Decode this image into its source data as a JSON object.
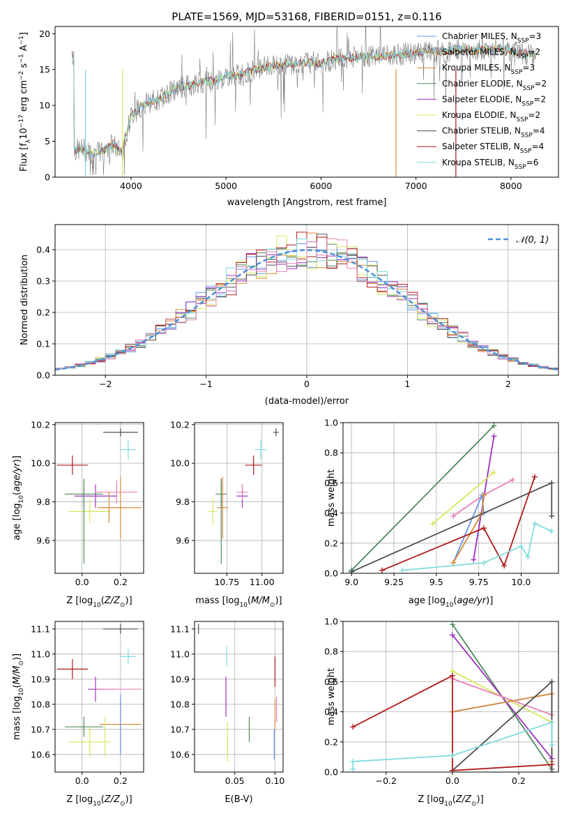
{
  "title": "PLATE=1569, MJD=53168, FIBERID=0151, z=0.116",
  "colors": {
    "chabrier_miles": "#6495ed",
    "salpeter_miles": "#9b9b9b",
    "kroupa_miles": "#d98b3a",
    "chabrier_elodie": "#4f8a5b",
    "salpeter_elodie": "#9b30c0",
    "kroupa_elodie": "#d4e85a",
    "chabrier_stelib": "#505050",
    "salpeter_stelib": "#b01818",
    "kroupa_stelib": "#7fdbe0",
    "pink": "#e880b8",
    "normal": "#4a90d9"
  },
  "chart_data": [
    {
      "id": "spectrum",
      "type": "line",
      "xlabel": "wavelength [Angstrom, rest frame]",
      "ylabel": "Flux [f_λ 10^-17 erg cm^-2 s^-1 A^-1]",
      "xlim": [
        3200,
        8500
      ],
      "ylim": [
        0,
        21
      ],
      "xticks": [
        4000,
        5000,
        6000,
        7000,
        8000
      ],
      "yticks": [
        0,
        5,
        10,
        15,
        20
      ],
      "legend_position": "right",
      "legend": [
        {
          "label": "Chabrier MILES, N_SSP=3",
          "color": "#6495ed"
        },
        {
          "label": "Salpeter MILES, N_SSP=2",
          "color": "#9b9b9b"
        },
        {
          "label": "Kroupa MILES, N_SSP=3",
          "color": "#d98b3a"
        },
        {
          "label": "Chabrier ELODIE, N_SSP=2",
          "color": "#4f8a5b"
        },
        {
          "label": "Salpeter ELODIE, N_SSP=2",
          "color": "#9b30c0"
        },
        {
          "label": "Kroupa ELODIE, N_SSP=2",
          "color": "#d4e85a"
        },
        {
          "label": "Chabrier STELIB, N_SSP=4",
          "color": "#505050"
        },
        {
          "label": "Salpeter STELIB, N_SSP=4",
          "color": "#b01818"
        },
        {
          "label": "Kroupa STELIB, N_SSP=6",
          "color": "#7fdbe0"
        }
      ],
      "series_points": [
        [
          3400,
          3.8
        ],
        [
          3500,
          3.9
        ],
        [
          3600,
          3.2
        ],
        [
          3700,
          3.7
        ],
        [
          3800,
          4.6
        ],
        [
          3900,
          3.5
        ],
        [
          4000,
          8.5
        ],
        [
          4100,
          9.8
        ],
        [
          4200,
          10.5
        ],
        [
          4300,
          10.8
        ],
        [
          4400,
          11.8
        ],
        [
          4500,
          12.5
        ],
        [
          4600,
          12.7
        ],
        [
          4700,
          13.2
        ],
        [
          4800,
          13.4
        ],
        [
          4900,
          13.4
        ],
        [
          5000,
          14.2
        ],
        [
          5100,
          14.1
        ],
        [
          5200,
          14.5
        ],
        [
          5300,
          15.0
        ],
        [
          5400,
          15.3
        ],
        [
          5500,
          15.5
        ],
        [
          5600,
          15.6
        ],
        [
          5700,
          15.8
        ],
        [
          5800,
          16.0
        ],
        [
          5900,
          16.0
        ],
        [
          6000,
          15.8
        ],
        [
          6100,
          16.3
        ],
        [
          6200,
          16.6
        ],
        [
          6300,
          16.6
        ],
        [
          6400,
          16.8
        ],
        [
          6500,
          16.9
        ],
        [
          6600,
          16.7
        ],
        [
          6700,
          17.0
        ],
        [
          6800,
          17.1
        ],
        [
          6900,
          17.2
        ],
        [
          7000,
          17.3
        ],
        [
          7100,
          17.5
        ],
        [
          7200,
          17.6
        ],
        [
          7300,
          17.5
        ],
        [
          7400,
          17.8
        ],
        [
          7500,
          17.9
        ],
        [
          7600,
          17.6
        ],
        [
          7700,
          17.7
        ],
        [
          7800,
          17.9
        ],
        [
          7900,
          18.0
        ],
        [
          8000,
          17.6
        ],
        [
          8100,
          17.3
        ],
        [
          8200,
          17.1
        ],
        [
          8250,
          17.0
        ]
      ]
    },
    {
      "id": "residual_hist",
      "type": "line",
      "xlabel": "(data-model)/error",
      "ylabel": "Normed distribution",
      "xlim": [
        -2.5,
        2.5
      ],
      "ylim": [
        0,
        0.48
      ],
      "xticks": [
        -2,
        -1,
        0,
        1,
        2
      ],
      "yticks": [
        0.0,
        0.1,
        0.2,
        0.3,
        0.4
      ],
      "legend_position": "top-right",
      "legend": [
        {
          "label": "𝒩(0, 1)",
          "color": "#4a90d9"
        }
      ],
      "curve": "normal pdf, mean 0, sigma 1"
    },
    {
      "id": "age_vs_Z",
      "type": "scatter",
      "xlabel": "Z [log10(Z/Z_⊙)]",
      "ylabel": "age  [log10(age/yr)]",
      "xlim": [
        -0.14,
        0.32
      ],
      "ylim": [
        9.43,
        10.21
      ],
      "xticks": [
        0.0,
        0.2
      ],
      "yticks": [
        9.6,
        9.8,
        10.0,
        10.2
      ],
      "points": [
        {
          "x": -0.05,
          "y": 9.99,
          "xerr": 0.08,
          "yerr": 0.05,
          "color": "#b01818"
        },
        {
          "x": 0.2,
          "y": 10.16,
          "xerr": 0.09,
          "yerr": 0.02,
          "color": "#505050"
        },
        {
          "x": 0.24,
          "y": 10.07,
          "xerr": 0.04,
          "yerr": 0.05,
          "color": "#7fdbe0"
        },
        {
          "x": 0.07,
          "y": 9.83,
          "xerr": 0.11,
          "yerr": 0.06,
          "color": "#9b30c0"
        },
        {
          "x": 0.01,
          "y": 9.84,
          "xerr": 0.1,
          "yerr": 0.06,
          "color": "#4f8a5b"
        },
        {
          "x": 0.04,
          "y": 9.75,
          "xerr": 0.11,
          "yerr": 0.06,
          "color": "#d4e85a"
        },
        {
          "x": 0.18,
          "y": 9.85,
          "xerr": 0.11,
          "yerr": 0.06,
          "color": "#e880b8"
        },
        {
          "x": 0.2,
          "y": 9.77,
          "xerr": 0.11,
          "yerr": 0.16,
          "color": "#d98b3a"
        },
        {
          "x": 0.14,
          "y": 9.77,
          "xerr": 0.06,
          "yerr": 0.08,
          "color": "#d98b3a"
        },
        {
          "x": 0.01,
          "y": 9.7,
          "xerr": 0.0,
          "yerr": 0.22,
          "color": "#4f8a5b"
        }
      ]
    },
    {
      "id": "age_vs_mass",
      "type": "scatter",
      "xlabel": "mass [log10(M/M_⊙)]",
      "ylabel": "",
      "xlim": [
        10.52,
        11.15
      ],
      "ylim": [
        9.43,
        10.21
      ],
      "xticks": [
        10.75,
        11.0
      ],
      "yticks": [
        9.6,
        9.8,
        10.0,
        10.2
      ],
      "points": [
        {
          "x": 10.94,
          "y": 9.99,
          "xerr": 0.06,
          "yerr": 0.05,
          "color": "#b01818"
        },
        {
          "x": 11.1,
          "y": 10.16,
          "xerr": 0.02,
          "yerr": 0.02,
          "color": "#505050"
        },
        {
          "x": 10.99,
          "y": 10.07,
          "xerr": 0.04,
          "yerr": 0.05,
          "color": "#7fdbe0"
        },
        {
          "x": 10.86,
          "y": 9.83,
          "xerr": 0.04,
          "yerr": 0.06,
          "color": "#9b30c0"
        },
        {
          "x": 10.71,
          "y": 9.84,
          "xerr": 0.04,
          "yerr": 0.06,
          "color": "#4f8a5b"
        },
        {
          "x": 10.65,
          "y": 9.75,
          "xerr": 0.03,
          "yerr": 0.07,
          "color": "#d4e85a"
        },
        {
          "x": 10.86,
          "y": 9.85,
          "xerr": 0.04,
          "yerr": 0.04,
          "color": "#e880b8"
        },
        {
          "x": 10.72,
          "y": 9.77,
          "xerr": 0.04,
          "yerr": 0.16,
          "color": "#d98b3a"
        },
        {
          "x": 10.71,
          "y": 9.7,
          "xerr": 0.0,
          "yerr": 0.22,
          "color": "#4f8a5b"
        }
      ]
    },
    {
      "id": "weight_vs_age",
      "type": "line",
      "xlabel": "age  [log10(age/yr)]",
      "ylabel": "mass weight",
      "xlim": [
        8.95,
        10.22
      ],
      "ylim": [
        0,
        1.0
      ],
      "xticks": [
        9.0,
        9.25,
        9.5,
        9.75,
        10.0
      ],
      "yticks": [
        0.0,
        0.2,
        0.4,
        0.6,
        0.8,
        1.0
      ],
      "series": [
        {
          "color": "#4f8a5b",
          "x": [
            9.0,
            9.84
          ],
          "y": [
            0.02,
            0.98
          ]
        },
        {
          "color": "#9b30c0",
          "x": [
            9.72,
            9.84
          ],
          "y": [
            0.09,
            0.91
          ]
        },
        {
          "color": "#d4e85a",
          "x": [
            9.48,
            9.84
          ],
          "y": [
            0.33,
            0.67
          ]
        },
        {
          "color": "#e880b8",
          "x": [
            9.6,
            9.78,
            9.95
          ],
          "y": [
            0.38,
            0.52,
            0.62
          ]
        },
        {
          "color": "#6495ed",
          "x": [
            9.6,
            9.77,
            9.78
          ],
          "y": [
            0.07,
            0.52,
            0.4
          ]
        },
        {
          "color": "#d98b3a",
          "x": [
            9.6,
            9.77,
            9.78
          ],
          "y": [
            0.07,
            0.4,
            0.52
          ]
        },
        {
          "color": "#505050",
          "x": [
            9.0,
            10.18,
            10.18
          ],
          "y": [
            0.01,
            0.6,
            0.38
          ]
        },
        {
          "color": "#b01818",
          "x": [
            9.18,
            9.78,
            9.9,
            10.08
          ],
          "y": [
            0.02,
            0.3,
            0.05,
            0.64
          ]
        },
        {
          "color": "#7fdbe0",
          "x": [
            9.3,
            9.78,
            10.0,
            10.04,
            10.08,
            10.18
          ],
          "y": [
            0.02,
            0.07,
            0.18,
            0.11,
            0.33,
            0.28
          ]
        }
      ]
    },
    {
      "id": "mass_vs_Z",
      "type": "scatter",
      "xlabel": "Z [log10(Z/Z_⊙)]",
      "ylabel": "mass [log10(M/M_⊙)]",
      "xlim": [
        -0.14,
        0.32
      ],
      "ylim": [
        10.53,
        11.13
      ],
      "xticks": [
        0.0,
        0.2
      ],
      "yticks": [
        10.6,
        10.7,
        10.8,
        10.9,
        11.0,
        11.1
      ],
      "points": [
        {
          "x": -0.05,
          "y": 10.94,
          "xerr": 0.08,
          "yerr": 0.04,
          "color": "#b01818"
        },
        {
          "x": 0.2,
          "y": 11.1,
          "xerr": 0.09,
          "yerr": 0.02,
          "color": "#505050"
        },
        {
          "x": 0.24,
          "y": 10.99,
          "xerr": 0.04,
          "yerr": 0.03,
          "color": "#7fdbe0"
        },
        {
          "x": 0.07,
          "y": 10.86,
          "xerr": 0.04,
          "yerr": 0.05,
          "color": "#9b30c0"
        },
        {
          "x": 0.2,
          "y": 10.86,
          "xerr": 0.11,
          "yerr": 0.0,
          "color": "#e880b8"
        },
        {
          "x": 0.12,
          "y": 10.86,
          "xerr": 0.05,
          "yerr": 0.0,
          "color": "#e880b8"
        },
        {
          "x": 0.01,
          "y": 10.71,
          "xerr": 0.1,
          "yerr": 0.04,
          "color": "#4f8a5b"
        },
        {
          "x": 0.2,
          "y": 10.72,
          "xerr": 0.11,
          "yerr": 0.1,
          "color": "#d98b3a"
        },
        {
          "x": 0.2,
          "y": 10.72,
          "xerr": 0.0,
          "yerr": 0.12,
          "color": "#6495ed"
        },
        {
          "x": 0.04,
          "y": 10.65,
          "xerr": 0.11,
          "yerr": 0.06,
          "color": "#d4e85a"
        },
        {
          "x": 0.12,
          "y": 10.67,
          "xerr": 0.0,
          "yerr": 0.08,
          "color": "#d4e85a"
        }
      ]
    },
    {
      "id": "mass_vs_ebv",
      "type": "scatter",
      "xlabel": "E(B-V)",
      "ylabel": "",
      "xlim": [
        0.0,
        0.11
      ],
      "ylim": [
        10.53,
        11.13
      ],
      "xticks": [
        0.05,
        0.1
      ],
      "yticks": [
        10.6,
        10.7,
        10.8,
        10.9,
        11.0,
        11.1
      ],
      "points": [
        {
          "x": 0.005,
          "y": 11.1,
          "xerr": 0.0,
          "yerr": 0.02,
          "color": "#505050"
        },
        {
          "x": 0.04,
          "y": 10.99,
          "xerr": 0.0,
          "yerr": 0.04,
          "color": "#7fdbe0"
        },
        {
          "x": 0.039,
          "y": 10.83,
          "xerr": 0.0,
          "yerr": 0.08,
          "color": "#9b30c0"
        },
        {
          "x": 0.041,
          "y": 10.65,
          "xerr": 0.0,
          "yerr": 0.08,
          "color": "#d4e85a"
        },
        {
          "x": 0.068,
          "y": 10.7,
          "xerr": 0.0,
          "yerr": 0.05,
          "color": "#4f8a5b"
        },
        {
          "x": 0.1,
          "y": 10.93,
          "xerr": 0.0,
          "yerr": 0.06,
          "color": "#b01818"
        },
        {
          "x": 0.1,
          "y": 10.76,
          "xerr": 0.0,
          "yerr": 0.06,
          "color": "#d98b3a"
        },
        {
          "x": 0.099,
          "y": 10.64,
          "xerr": 0.0,
          "yerr": 0.06,
          "color": "#6495ed"
        },
        {
          "x": 0.102,
          "y": 10.78,
          "xerr": 0.0,
          "yerr": 0.05,
          "color": "#e880b8"
        }
      ]
    },
    {
      "id": "weight_vs_Z",
      "type": "line",
      "xlabel": "Z [log10(Z/Z_⊙)]",
      "ylabel": "mass weight",
      "xlim": [
        -0.33,
        0.32
      ],
      "ylim": [
        0,
        1.0
      ],
      "xticks": [
        -0.2,
        0.0,
        0.2
      ],
      "yticks": [
        0.0,
        0.2,
        0.4,
        0.6,
        0.8,
        1.0
      ],
      "series": [
        {
          "color": "#4f8a5b",
          "x": [
            0.0,
            0.3
          ],
          "y": [
            0.98,
            0.02
          ]
        },
        {
          "color": "#9b30c0",
          "x": [
            0.0,
            0.3
          ],
          "y": [
            0.91,
            0.09
          ]
        },
        {
          "color": "#d4e85a",
          "x": [
            0.0,
            0.3
          ],
          "y": [
            0.67,
            0.33
          ]
        },
        {
          "color": "#e880b8",
          "x": [
            0.0,
            0.3
          ],
          "y": [
            0.62,
            0.38
          ]
        },
        {
          "color": "#6495ed",
          "x": [
            0.0,
            0.3
          ],
          "y": [
            0.4,
            0.52
          ]
        },
        {
          "color": "#d98b3a",
          "x": [
            0.0,
            0.3,
            0.3
          ],
          "y": [
            0.4,
            0.52,
            0.07
          ]
        },
        {
          "color": "#505050",
          "x": [
            0.0,
            0.3,
            0.3
          ],
          "y": [
            0.01,
            0.6,
            0.0
          ]
        },
        {
          "color": "#b01818",
          "x": [
            -0.3,
            0.0,
            0.0,
            0.3
          ],
          "y": [
            0.3,
            0.64,
            0.01,
            0.05
          ]
        },
        {
          "color": "#7fdbe0",
          "x": [
            -0.3,
            -0.3,
            0.0,
            0.3,
            0.3
          ],
          "y": [
            0.02,
            0.07,
            0.11,
            0.33,
            0.18
          ]
        }
      ]
    }
  ]
}
